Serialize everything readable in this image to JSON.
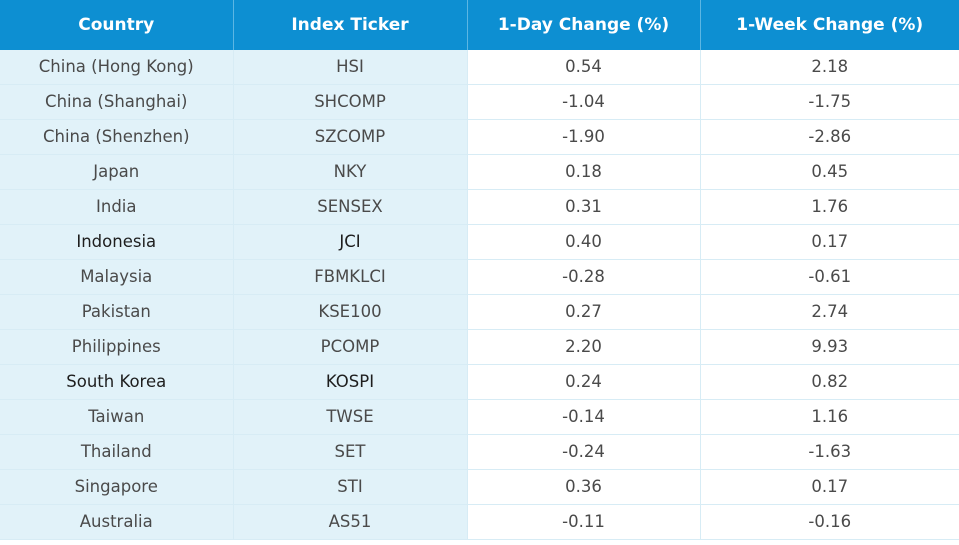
{
  "chart_data": {
    "type": "table",
    "columns": [
      "Country",
      "Index Ticker",
      "1-Day Change (%)",
      "1-Week Change (%)"
    ],
    "rows": [
      {
        "country": "China (Hong Kong)",
        "ticker": "HSI",
        "day": "0.54",
        "week": "2.18"
      },
      {
        "country": "China (Shanghai)",
        "ticker": "SHCOMP",
        "day": "-1.04",
        "week": "-1.75"
      },
      {
        "country": "China (Shenzhen)",
        "ticker": "SZCOMP",
        "day": "-1.90",
        "week": "-2.86"
      },
      {
        "country": "Japan",
        "ticker": "NKY",
        "day": "0.18",
        "week": "0.45"
      },
      {
        "country": "India",
        "ticker": "SENSEX",
        "day": "0.31",
        "week": "1.76"
      },
      {
        "country": "Indonesia",
        "ticker": "JCI",
        "day": "0.40",
        "week": "0.17"
      },
      {
        "country": "Malaysia",
        "ticker": "FBMKLCI",
        "day": "-0.28",
        "week": "-0.61"
      },
      {
        "country": "Pakistan",
        "ticker": "KSE100",
        "day": "0.27",
        "week": "2.74"
      },
      {
        "country": "Philippines",
        "ticker": "PCOMP",
        "day": "2.20",
        "week": "9.93"
      },
      {
        "country": "South Korea",
        "ticker": "KOSPI",
        "day": "0.24",
        "week": "0.82"
      },
      {
        "country": "Taiwan",
        "ticker": "TWSE",
        "day": "-0.14",
        "week": "1.16"
      },
      {
        "country": "Thailand",
        "ticker": "SET",
        "day": "-0.24",
        "week": "-1.63"
      },
      {
        "country": "Singapore",
        "ticker": "STI",
        "day": "0.36",
        "week": "0.17"
      },
      {
        "country": "Australia",
        "ticker": "AS51",
        "day": "-0.11",
        "week": "-0.16"
      }
    ]
  },
  "style": {
    "header_bg": "#0d8fd2",
    "tint_bg": "#e1f2f9"
  }
}
